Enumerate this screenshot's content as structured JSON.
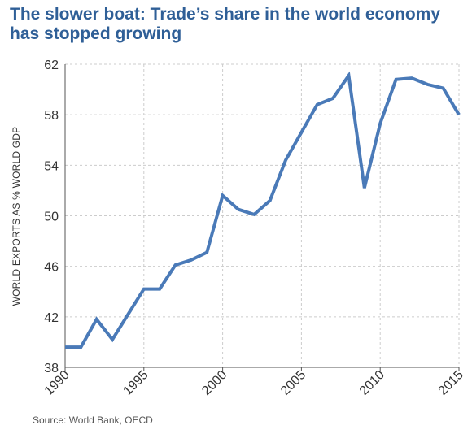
{
  "chart_data": {
    "type": "line",
    "title": "The slower boat: Trade’s share in the world economy has stopped growing",
    "xlabel": "",
    "ylabel": "WORLD EXPORTS AS % WORLD GDP",
    "xlim": [
      1990,
      2015
    ],
    "ylim": [
      38,
      62
    ],
    "x_ticks": [
      "1990",
      "1995",
      "2000",
      "2005",
      "2010",
      "2015"
    ],
    "y_ticks": [
      "38",
      "42",
      "46",
      "50",
      "54",
      "58",
      "62"
    ],
    "grid": true,
    "legend": "none",
    "line_color": "#4a7ab8",
    "x": [
      1990,
      1991,
      1992,
      1993,
      1994,
      1995,
      1996,
      1997,
      1998,
      1999,
      2000,
      2001,
      2002,
      2003,
      2004,
      2005,
      2006,
      2007,
      2008,
      2009,
      2010,
      2011,
      2012,
      2013,
      2014,
      2015
    ],
    "values": [
      39.6,
      39.6,
      41.8,
      40.2,
      42.2,
      44.2,
      44.2,
      46.1,
      46.5,
      47.1,
      51.6,
      50.5,
      50.1,
      51.2,
      54.4,
      56.6,
      58.8,
      59.3,
      61.1,
      52.2,
      57.3,
      60.8,
      60.9,
      60.4,
      60.1,
      58.0
    ],
    "source": "Source: World Bank, OECD"
  }
}
